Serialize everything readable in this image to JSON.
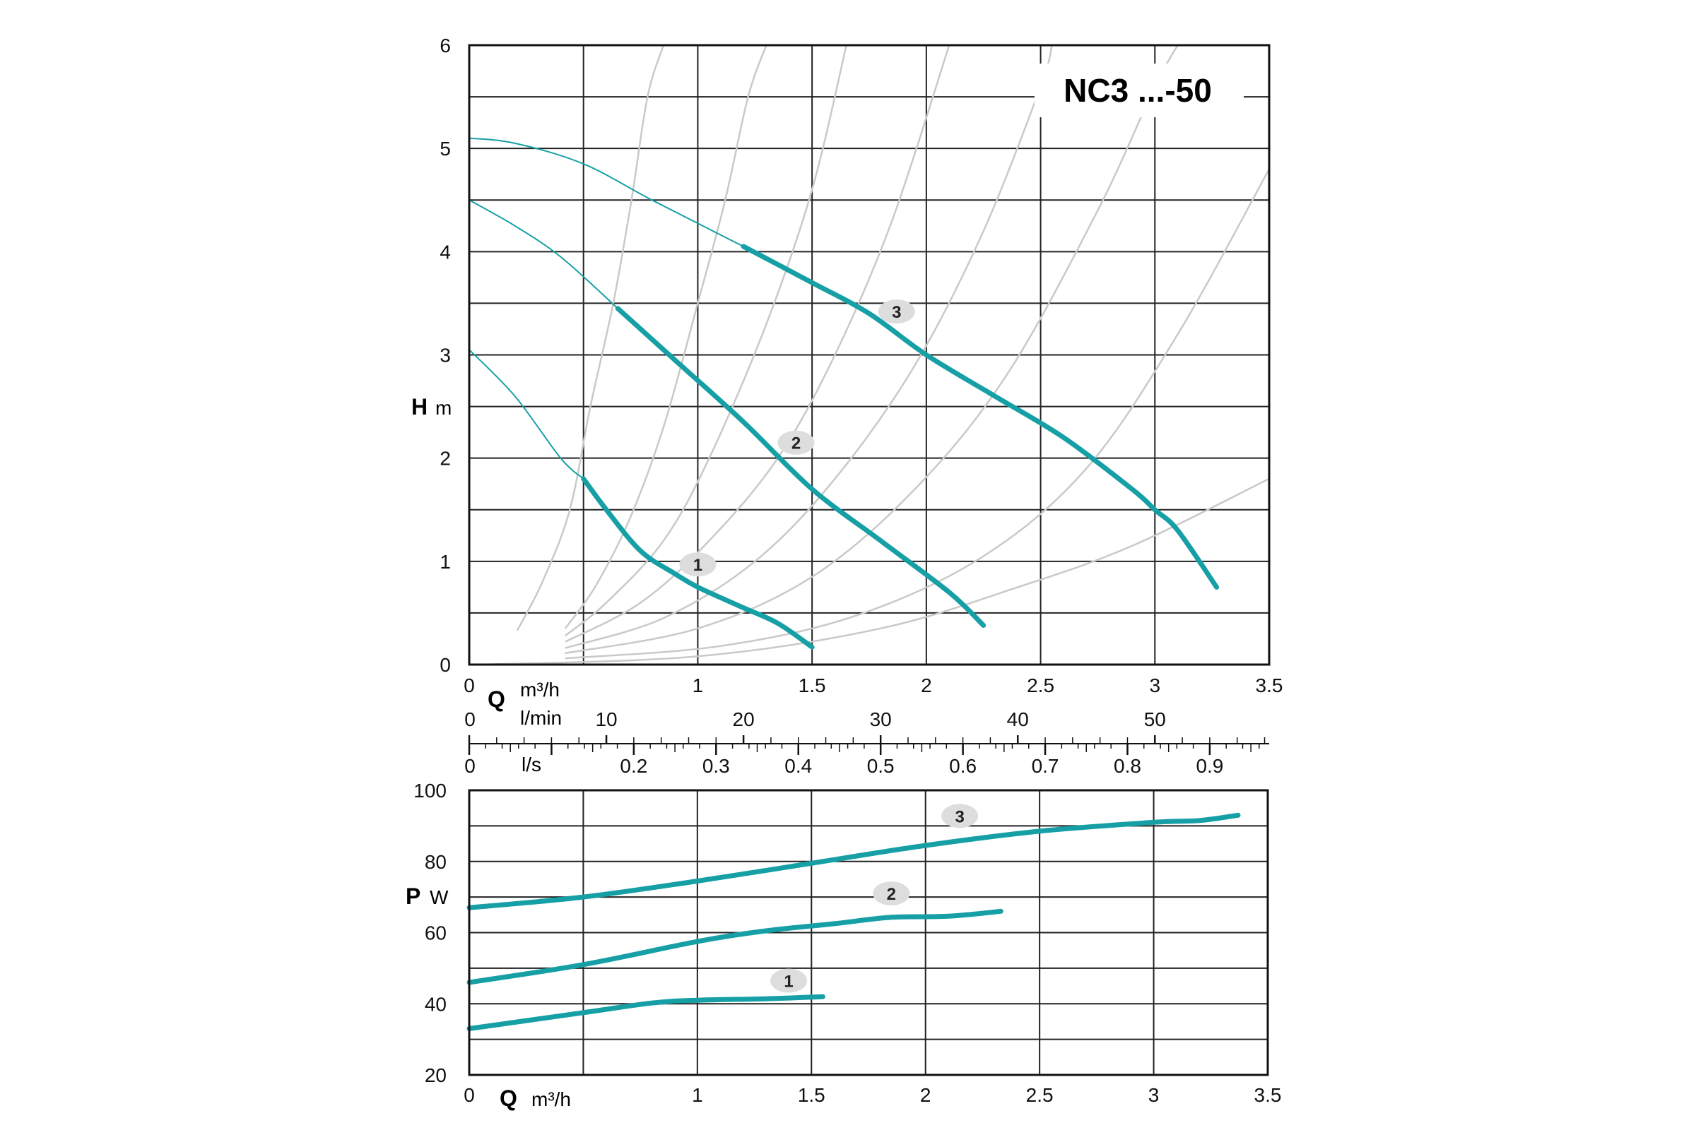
{
  "chart_data": [
    {
      "type": "line",
      "title": "NC3 ...-50",
      "x_axis": {
        "symbol": "Q",
        "unit": "m³/h",
        "range": [
          0,
          3.5
        ],
        "ticks": [
          0,
          1,
          1.5,
          2,
          2.5,
          3,
          3.5
        ],
        "tick_labels": [
          "0",
          "1",
          "1.5",
          "2",
          "2.5",
          "3",
          "3.5"
        ]
      },
      "y_axis": {
        "symbol": "H",
        "unit": "m",
        "range": [
          0,
          6
        ],
        "ticks": [
          0,
          1,
          2,
          3,
          4,
          5,
          6
        ],
        "tick_labels": [
          "0",
          "1",
          "2",
          "3",
          "4",
          "5",
          "6"
        ]
      },
      "grid": true,
      "secondary_scales": {
        "lmin": {
          "unit": "l/min",
          "zero_label": "0",
          "ticks": [
            10,
            20,
            30,
            40,
            50
          ],
          "tick_labels": [
            "10",
            "20",
            "30",
            "40",
            "50"
          ]
        },
        "ls": {
          "unit": "l/s",
          "zero_label": "0",
          "ticks": [
            0.2,
            0.3,
            0.4,
            0.5,
            0.6,
            0.7,
            0.8,
            0.9
          ],
          "tick_labels": [
            "0.2",
            "0.3",
            "0.4",
            "0.5",
            "0.6",
            "0.7",
            "0.8",
            "0.9"
          ]
        }
      },
      "series": [
        {
          "name": "1",
          "points": [
            [
              0,
              3.05
            ],
            [
              0.2,
              2.6
            ],
            [
              0.4,
              2.0
            ],
            [
              0.5,
              1.8
            ],
            [
              0.6,
              1.5
            ],
            [
              0.75,
              1.1
            ],
            [
              0.9,
              0.88
            ],
            [
              1.0,
              0.75
            ],
            [
              1.2,
              0.55
            ],
            [
              1.35,
              0.4
            ],
            [
              1.5,
              0.17
            ]
          ],
          "marker_label_at": [
            1.0,
            0.97
          ]
        },
        {
          "name": "2",
          "points": [
            [
              0,
              4.5
            ],
            [
              0.2,
              4.25
            ],
            [
              0.4,
              3.95
            ],
            [
              0.65,
              3.45
            ],
            [
              0.9,
              2.95
            ],
            [
              1.2,
              2.35
            ],
            [
              1.5,
              1.7
            ],
            [
              1.8,
              1.2
            ],
            [
              2.1,
              0.7
            ],
            [
              2.25,
              0.38
            ]
          ],
          "marker_label_at": [
            1.43,
            2.15
          ]
        },
        {
          "name": "3",
          "points": [
            [
              0,
              5.1
            ],
            [
              0.2,
              5.05
            ],
            [
              0.5,
              4.85
            ],
            [
              0.8,
              4.5
            ],
            [
              1.2,
              4.05
            ],
            [
              1.5,
              3.7
            ],
            [
              1.75,
              3.4
            ],
            [
              2.0,
              3.0
            ],
            [
              2.3,
              2.6
            ],
            [
              2.6,
              2.2
            ],
            [
              2.9,
              1.7
            ],
            [
              3.0,
              1.5
            ],
            [
              3.1,
              1.3
            ],
            [
              3.27,
              0.75
            ]
          ],
          "marker_label_at": [
            1.87,
            3.42
          ]
        }
      ],
      "system_curves": [
        {
          "points": [
            [
              0.21,
              0.33
            ],
            [
              0.32,
              0.8
            ],
            [
              0.44,
              1.5
            ],
            [
              0.53,
              2.5
            ],
            [
              0.63,
              3.5
            ],
            [
              0.71,
              4.5
            ],
            [
              0.78,
              5.5
            ],
            [
              0.85,
              6.0
            ]
          ]
        },
        {
          "points": [
            [
              0.42,
              0.35
            ],
            [
              0.55,
              0.75
            ],
            [
              0.7,
              1.4
            ],
            [
              0.85,
              2.3
            ],
            [
              1.0,
              3.5
            ],
            [
              1.12,
              4.5
            ],
            [
              1.22,
              5.5
            ],
            [
              1.3,
              6.0
            ]
          ]
        },
        {
          "points": [
            [
              0.42,
              0.28
            ],
            [
              0.6,
              0.6
            ],
            [
              0.85,
              1.2
            ],
            [
              1.05,
              2.0
            ],
            [
              1.3,
              3.3
            ],
            [
              1.5,
              4.6
            ],
            [
              1.65,
              6.0
            ]
          ]
        },
        {
          "points": [
            [
              0.42,
              0.22
            ],
            [
              0.75,
              0.6
            ],
            [
              1.05,
              1.2
            ],
            [
              1.35,
              2.0
            ],
            [
              1.6,
              3.0
            ],
            [
              1.85,
              4.3
            ],
            [
              2.1,
              6.0
            ]
          ]
        },
        {
          "points": [
            [
              0.42,
              0.16
            ],
            [
              0.85,
              0.45
            ],
            [
              1.25,
              1.0
            ],
            [
              1.6,
              1.8
            ],
            [
              1.95,
              2.9
            ],
            [
              2.25,
              4.2
            ],
            [
              2.5,
              5.6
            ],
            [
              2.55,
              6.0
            ]
          ]
        },
        {
          "points": [
            [
              0.42,
              0.11
            ],
            [
              1.0,
              0.35
            ],
            [
              1.5,
              0.85
            ],
            [
              1.95,
              1.7
            ],
            [
              2.35,
              2.8
            ],
            [
              2.75,
              4.4
            ],
            [
              3.0,
              5.6
            ],
            [
              3.1,
              6.0
            ]
          ]
        },
        {
          "points": [
            [
              0.42,
              0.06
            ],
            [
              1.1,
              0.18
            ],
            [
              1.7,
              0.48
            ],
            [
              2.25,
              1.05
            ],
            [
              2.7,
              1.9
            ],
            [
              3.1,
              3.2
            ],
            [
              3.5,
              4.8
            ]
          ]
        },
        {
          "points": [
            [
              0.05,
              0.0
            ],
            [
              1.0,
              0.08
            ],
            [
              1.8,
              0.35
            ],
            [
              2.4,
              0.75
            ],
            [
              2.9,
              1.15
            ],
            [
              3.5,
              1.8
            ]
          ]
        }
      ]
    },
    {
      "type": "line",
      "x_axis": {
        "symbol": "Q",
        "unit": "m³/h",
        "range": [
          0,
          3.5
        ],
        "ticks": [
          0,
          1,
          1.5,
          2,
          2.5,
          3,
          3.5
        ],
        "tick_labels": [
          "0",
          "1",
          "1.5",
          "2",
          "2.5",
          "3",
          "3.5"
        ]
      },
      "y_axis": {
        "symbol": "P",
        "unit": "W",
        "range": [
          20,
          100
        ],
        "ticks": [
          20,
          40,
          60,
          80,
          100
        ],
        "tick_labels": [
          "20",
          "40",
          "60",
          "80",
          "100"
        ]
      },
      "grid": true,
      "series": [
        {
          "name": "1",
          "points": [
            [
              0,
              33
            ],
            [
              0.5,
              37.5
            ],
            [
              0.8,
              40.2
            ],
            [
              1.0,
              41
            ],
            [
              1.3,
              41.4
            ],
            [
              1.55,
              42
            ]
          ],
          "marker_label_at": [
            1.4,
            46.5
          ]
        },
        {
          "name": "2",
          "points": [
            [
              0,
              46
            ],
            [
              0.5,
              51
            ],
            [
              1.0,
              57.5
            ],
            [
              1.3,
              60.5
            ],
            [
              1.6,
              62.5
            ],
            [
              1.85,
              64.3
            ],
            [
              2.1,
              64.6
            ],
            [
              2.33,
              66
            ]
          ],
          "marker_label_at": [
            1.85,
            71
          ]
        },
        {
          "name": "3",
          "points": [
            [
              0,
              67
            ],
            [
              0.5,
              70
            ],
            [
              1.0,
              74.5
            ],
            [
              1.5,
              79.5
            ],
            [
              2.0,
              84.5
            ],
            [
              2.5,
              88.5
            ],
            [
              3.0,
              91
            ],
            [
              3.2,
              91.5
            ],
            [
              3.37,
              93
            ]
          ],
          "marker_label_at": [
            2.15,
            92.8
          ]
        }
      ]
    }
  ]
}
